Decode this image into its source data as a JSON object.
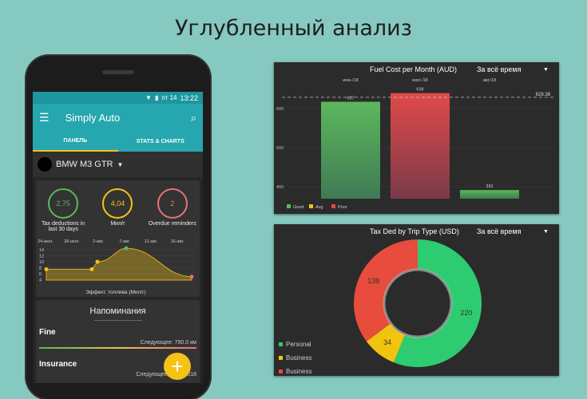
{
  "headline": "Углубленный анализ",
  "phone": {
    "status": {
      "day": "пт 14",
      "time": "13:22"
    },
    "app_title": "Simply Auto",
    "tabs": [
      {
        "label": "ПАНЕЛЬ",
        "active": true
      },
      {
        "label": "STATS & CHARTS",
        "active": false
      }
    ],
    "vehicle": "BMW M3 GTR",
    "gauges": [
      {
        "value": "2,75",
        "label": "Tax deductions in last 30 days",
        "color": "#5cb85c"
      },
      {
        "value": "4,04",
        "label": "Мил/г",
        "color": "#f3c316"
      },
      {
        "value": "2",
        "label": "Overdue reminders",
        "color": "#e57373"
      }
    ],
    "mini_chart": {
      "x_labels": [
        "24-июл.",
        "28-июл.",
        "2-авг.",
        "7-авг.",
        "11-авг.",
        "16-авг."
      ],
      "y_labels": [
        "14",
        "12",
        "10",
        "8",
        "6",
        "4"
      ],
      "points": [
        7.5,
        7.5,
        10,
        14.5,
        5
      ],
      "caption": "Эффект. топлива (Мил/г)"
    },
    "reminders": {
      "title": "Напоминания",
      "items": [
        {
          "name": "Fine",
          "next": "Следующее: 790.0 км"
        },
        {
          "name": "Insurance",
          "next": "Следующее: июл. 2018"
        }
      ]
    }
  },
  "chart_data": [
    {
      "type": "bar",
      "title": "Fuel Cost per Month (AUD)",
      "period": "За всё время",
      "categories": [
        "июн./18",
        "июл./18",
        "авг./18"
      ],
      "values": [
        617,
        639,
        392
      ],
      "ratings": [
        "Good",
        "Poor",
        "Good"
      ],
      "reference_line": 628.38,
      "reference_label": "628.38",
      "y_ticks": [
        400,
        500,
        600
      ],
      "ylim": [
        370,
        673
      ],
      "legend": [
        {
          "name": "Good",
          "color": "#5cb85c"
        },
        {
          "name": "Avg",
          "color": "#f3c316"
        },
        {
          "name": "Poor",
          "color": "#e04a4a"
        }
      ],
      "legend_placement": "bottom-left"
    },
    {
      "type": "pie",
      "title": "Tax Ded by Trip Type (USD)",
      "period": "За всё время",
      "slices": [
        {
          "name": "Personal",
          "value": 220,
          "color": "#2ecc71"
        },
        {
          "name": "Business",
          "value": 34,
          "color": "#f1c40f"
        },
        {
          "name": "Business",
          "value": 138,
          "color": "#e74c3c"
        }
      ],
      "legend_placement": "bottom-left"
    }
  ]
}
